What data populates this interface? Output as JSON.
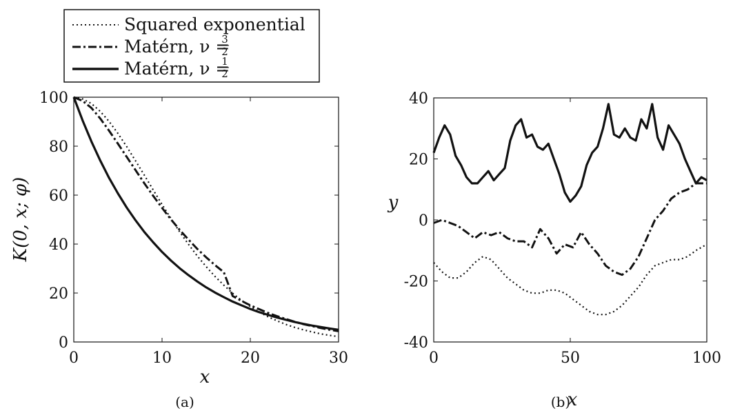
{
  "legend": {
    "entries": [
      {
        "text": "Squared exponential",
        "frac": null,
        "style": "dotted"
      },
      {
        "text": "Matérn, ν =",
        "frac": {
          "num": "3",
          "den": "2"
        },
        "style": "dashdot"
      },
      {
        "text": "Matérn, ν =",
        "frac": {
          "num": "1",
          "den": "2"
        },
        "style": "solid"
      }
    ]
  },
  "chart_data": [
    {
      "panel": "(a)",
      "type": "line",
      "xlabel": "x",
      "ylabel": "K(0, x; φ)",
      "xlim": [
        0,
        30
      ],
      "ylim": [
        0,
        100
      ],
      "xticks": [
        "0",
        "10",
        "20",
        "30"
      ],
      "yticks": [
        "0",
        "20",
        "40",
        "60",
        "80",
        "100"
      ],
      "grid": false,
      "series": [
        {
          "name": "Squared exponential",
          "style": "dotted",
          "x": [
            0,
            1,
            2,
            3,
            4,
            5,
            6,
            7,
            8,
            9,
            10,
            11,
            12,
            13,
            14,
            15,
            16,
            17,
            18,
            19,
            20,
            21,
            22,
            23,
            24,
            25,
            26,
            27,
            28,
            29,
            30
          ],
          "y": [
            100,
            99.3,
            97.4,
            94.2,
            90.1,
            85.2,
            79.8,
            74.0,
            68.1,
            62.1,
            56.2,
            50.5,
            45.0,
            39.9,
            35.1,
            30.8,
            26.8,
            23.2,
            19.9,
            17.0,
            14.5,
            12.3,
            10.3,
            8.7,
            7.2,
            6.0,
            5.0,
            4.1,
            3.3,
            2.7,
            2.2
          ]
        },
        {
          "name": "Matérn, ν = 3/2",
          "style": "dashdot",
          "x": [
            0,
            1,
            2,
            3,
            4,
            5,
            6,
            7,
            8,
            9,
            10,
            11,
            12,
            13,
            14,
            15,
            16,
            17,
            18,
            19,
            20,
            21,
            22,
            23,
            24,
            25,
            26,
            27,
            28,
            29,
            30
          ],
          "y": [
            100,
            98.5,
            95.6,
            91.3,
            86.3,
            81.0,
            75.6,
            70.2,
            64.8,
            59.7,
            54.8,
            50.1,
            45.8,
            41.8,
            38.0,
            34.6,
            31.4,
            28.5,
            18.8,
            16.8,
            15.0,
            13.4,
            11.9,
            10.6,
            9.4,
            8.3,
            7.3,
            6.5,
            5.7,
            5.0,
            4.4
          ]
        },
        {
          "name": "Matérn, ν = 1/2",
          "style": "solid",
          "x": [
            0,
            1,
            2,
            3,
            4,
            5,
            6,
            7,
            8,
            9,
            10,
            11,
            12,
            13,
            14,
            15,
            16,
            17,
            18,
            19,
            20,
            21,
            22,
            23,
            24,
            25,
            26,
            27,
            28,
            29,
            30
          ],
          "y": [
            100,
            90.5,
            81.9,
            74.1,
            67.0,
            60.7,
            54.9,
            49.7,
            44.9,
            40.7,
            36.8,
            33.3,
            30.1,
            27.3,
            24.7,
            22.3,
            20.2,
            18.3,
            16.5,
            15.0,
            13.5,
            12.2,
            11.1,
            10.0,
            9.1,
            8.2,
            7.4,
            6.7,
            6.1,
            5.5,
            5.0
          ]
        }
      ],
      "caption": "(a)"
    },
    {
      "panel": "(b)",
      "type": "line",
      "xlabel": "x",
      "ylabel": "y",
      "xlim": [
        0,
        100
      ],
      "ylim": [
        -40,
        40
      ],
      "xticks": [
        "0",
        "50",
        "100"
      ],
      "yticks": [
        "-40",
        "-20",
        "0",
        "20",
        "40"
      ],
      "grid": false,
      "series": [
        {
          "name": "Squared exponential",
          "style": "dotted",
          "x": [
            0,
            3,
            6,
            9,
            12,
            15,
            18,
            21,
            24,
            27,
            30,
            33,
            36,
            39,
            42,
            45,
            48,
            51,
            54,
            57,
            60,
            63,
            66,
            69,
            72,
            75,
            78,
            81,
            84,
            87,
            90,
            93,
            96,
            100
          ],
          "y": [
            -14,
            -17,
            -19,
            -19,
            -17,
            -14,
            -12,
            -13,
            -16,
            -19,
            -21,
            -23,
            -24,
            -24,
            -23,
            -23,
            -24,
            -26,
            -28,
            -30,
            -31,
            -31,
            -30,
            -28,
            -25,
            -22,
            -18,
            -15,
            -14,
            -13,
            -13,
            -12,
            -10,
            -8
          ]
        },
        {
          "name": "Matérn, ν = 3/2",
          "style": "dashdot",
          "x": [
            0,
            3,
            6,
            9,
            12,
            15,
            18,
            21,
            24,
            27,
            30,
            33,
            36,
            39,
            42,
            45,
            48,
            51,
            54,
            57,
            60,
            63,
            66,
            69,
            72,
            75,
            78,
            81,
            84,
            87,
            90,
            93,
            96,
            100
          ],
          "y": [
            -1,
            0,
            -1,
            -2,
            -4,
            -6,
            -4,
            -5,
            -4,
            -6,
            -7,
            -7,
            -9,
            -3,
            -6,
            -11,
            -8,
            -9,
            -4,
            -8,
            -11,
            -15,
            -17,
            -18,
            -16,
            -12,
            -6,
            0,
            3,
            7,
            9,
            10,
            12,
            12
          ]
        },
        {
          "name": "Matérn, ν = 1/2",
          "style": "solid",
          "x": [
            0,
            2,
            4,
            6,
            8,
            10,
            12,
            14,
            16,
            18,
            20,
            22,
            24,
            26,
            28,
            30,
            32,
            34,
            36,
            38,
            40,
            42,
            44,
            46,
            48,
            50,
            52,
            54,
            56,
            58,
            60,
            62,
            64,
            66,
            68,
            70,
            72,
            74,
            76,
            78,
            80,
            82,
            84,
            86,
            88,
            90,
            92,
            94,
            96,
            98,
            100
          ],
          "y": [
            22,
            27,
            31,
            28,
            21,
            18,
            14,
            12,
            12,
            14,
            16,
            13,
            15,
            17,
            26,
            31,
            33,
            27,
            28,
            24,
            23,
            25,
            20,
            15,
            9,
            6,
            8,
            11,
            18,
            22,
            24,
            30,
            38,
            28,
            27,
            30,
            27,
            26,
            33,
            30,
            38,
            27,
            23,
            31,
            28,
            25,
            20,
            16,
            12,
            14,
            13
          ]
        }
      ],
      "caption": "(b)"
    }
  ]
}
